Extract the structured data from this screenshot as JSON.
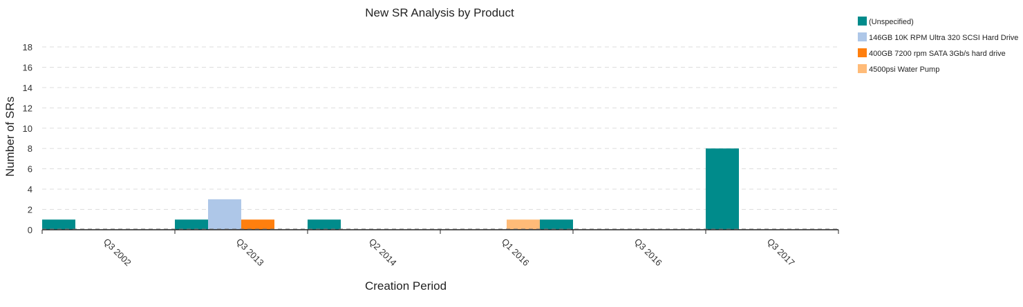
{
  "chart_data": {
    "type": "bar",
    "title": "New SR Analysis by Product",
    "xlabel": "Creation Period",
    "ylabel": "Number of SRs",
    "ylim": [
      0,
      18
    ],
    "yticks": [
      0,
      2,
      4,
      6,
      8,
      10,
      12,
      14,
      16,
      18
    ],
    "grid": true,
    "legend_position": "top-right",
    "categories": [
      "Q3 2002",
      "Q3 2013",
      "Q2 2014",
      "Q1 2016",
      "Q3 2016",
      "Q3 2017"
    ],
    "series": [
      {
        "name": "(Unspecified)",
        "color": "#008b8b",
        "values": [
          1,
          1,
          1,
          0,
          1,
          8
        ]
      },
      {
        "name": "146GB 10K RPM Ultra 320 SCSI Hard Drive",
        "color": "#aec7e8",
        "values": [
          0,
          3,
          0,
          0,
          0,
          0
        ]
      },
      {
        "name": "400GB 7200 rpm SATA 3Gb/s hard drive",
        "color": "#ff7f0e",
        "values": [
          0,
          1,
          0,
          0,
          0,
          0
        ]
      },
      {
        "name": "4500psi Water Pump",
        "color": "#ffbb78",
        "values": [
          0,
          0,
          0,
          1,
          0,
          0
        ]
      }
    ]
  }
}
